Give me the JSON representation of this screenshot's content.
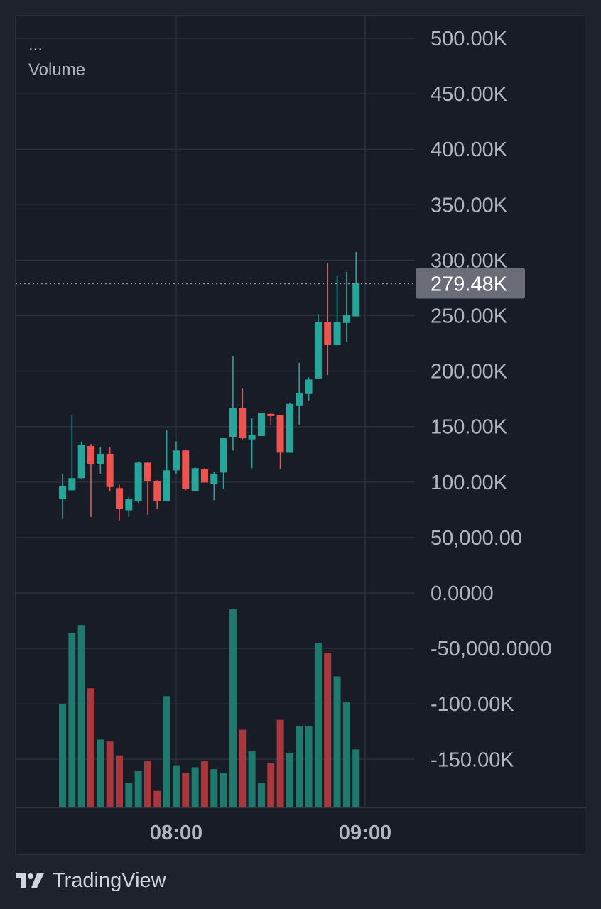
{
  "legend": {
    "menu": "...",
    "label": "Volume"
  },
  "brand": {
    "name": "TradingView"
  },
  "colors": {
    "up": "#26a69a",
    "down": "#ef5350",
    "up_vol": "#1f7a6e",
    "down_vol": "#a8383d",
    "grid": "#2a2e39",
    "background": "#181c27",
    "text": "#b2b5be",
    "price_tag": "#6a6d78"
  },
  "chart_data": {
    "type": "candlestick",
    "price_axis_labels": [
      "500.00K",
      "450.00K",
      "400.00K",
      "350.00K",
      "300.00K",
      "250.00K",
      "200.00K",
      "150.00K",
      "100.00K",
      "50,000.00",
      "0.0000",
      "-50,000.0000",
      "-100.00K",
      "-150.00K"
    ],
    "time_axis_labels": [
      "08:00",
      "09:00"
    ],
    "last_price": 279480,
    "last_price_label": "279.48K",
    "candles": [
      {
        "o": 85000,
        "h": 108000,
        "l": 67000,
        "c": 97000
      },
      {
        "o": 93000,
        "h": 161000,
        "l": 93000,
        "c": 104000
      },
      {
        "o": 104000,
        "h": 137000,
        "l": 103000,
        "c": 134000
      },
      {
        "o": 133000,
        "h": 135000,
        "l": 69000,
        "c": 117000
      },
      {
        "o": 117000,
        "h": 132000,
        "l": 108000,
        "c": 126000
      },
      {
        "o": 126000,
        "h": 132000,
        "l": 92000,
        "c": 96000
      },
      {
        "o": 95000,
        "h": 98000,
        "l": 66000,
        "c": 76000
      },
      {
        "o": 75000,
        "h": 87000,
        "l": 69000,
        "c": 85000
      },
      {
        "o": 83000,
        "h": 119000,
        "l": 82000,
        "c": 118000
      },
      {
        "o": 118000,
        "h": 118000,
        "l": 71000,
        "c": 101000
      },
      {
        "o": 101000,
        "h": 102000,
        "l": 76000,
        "c": 83000
      },
      {
        "o": 83000,
        "h": 147000,
        "l": 83000,
        "c": 111000
      },
      {
        "o": 111000,
        "h": 137000,
        "l": 108000,
        "c": 129000
      },
      {
        "o": 129000,
        "h": 130000,
        "l": 93000,
        "c": 94000
      },
      {
        "o": 92000,
        "h": 114000,
        "l": 92000,
        "c": 113000
      },
      {
        "o": 112000,
        "h": 113000,
        "l": 100000,
        "c": 100000
      },
      {
        "o": 99000,
        "h": 110000,
        "l": 84000,
        "c": 108000
      },
      {
        "o": 109000,
        "h": 140000,
        "l": 94000,
        "c": 140000
      },
      {
        "o": 141000,
        "h": 214000,
        "l": 129000,
        "c": 167000
      },
      {
        "o": 167000,
        "h": 185000,
        "l": 139000,
        "c": 140000
      },
      {
        "o": 139000,
        "h": 158000,
        "l": 113000,
        "c": 143000
      },
      {
        "o": 142000,
        "h": 163000,
        "l": 142000,
        "c": 163000
      },
      {
        "o": 162000,
        "h": 163000,
        "l": 152000,
        "c": 160000
      },
      {
        "o": 161000,
        "h": 161000,
        "l": 112000,
        "c": 127000
      },
      {
        "o": 127000,
        "h": 172000,
        "l": 127000,
        "c": 171000
      },
      {
        "o": 169000,
        "h": 208000,
        "l": 152000,
        "c": 181000
      },
      {
        "o": 180000,
        "h": 195000,
        "l": 174000,
        "c": 193000
      },
      {
        "o": 194000,
        "h": 252000,
        "l": 195000,
        "c": 245000
      },
      {
        "o": 245000,
        "h": 298000,
        "l": 197000,
        "c": 224000
      },
      {
        "o": 224000,
        "h": 287000,
        "l": 224000,
        "c": 245000
      },
      {
        "o": 244000,
        "h": 290000,
        "l": 227000,
        "c": 251000
      },
      {
        "o": 250000,
        "h": 308000,
        "l": 250000,
        "c": 280000
      }
    ],
    "volume": [
      0.52,
      0.88,
      0.92,
      0.6,
      0.34,
      0.33,
      0.26,
      0.12,
      0.18,
      0.23,
      0.08,
      0.56,
      0.21,
      0.17,
      0.2,
      0.23,
      0.19,
      0.17,
      1.0,
      0.39,
      0.28,
      0.12,
      0.22,
      0.44,
      0.27,
      0.41,
      0.41,
      0.83,
      0.78,
      0.66,
      0.53,
      0.29
    ]
  }
}
